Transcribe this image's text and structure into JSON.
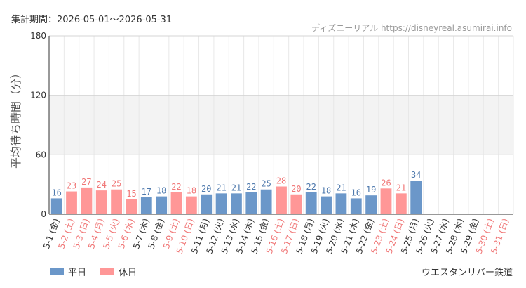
{
  "header": {
    "period": "集計期間：2026-05-01～2026-05-31",
    "credit": "ディズニーリアル https://disneyreal.asumirai.info"
  },
  "legend": {
    "weekday_label": "平日",
    "holiday_label": "休日"
  },
  "footer": {
    "attraction": "ウエスタンリバー鉄道"
  },
  "colors": {
    "weekday": "#6b97c9",
    "holiday": "#ff9797",
    "weekday_text": "#4e79ad",
    "holiday_text": "#f07777",
    "band": "#f3f3f3"
  },
  "chart_data": {
    "type": "bar",
    "ylabel": "平均待ち時間（分）",
    "ylim": [
      0,
      180
    ],
    "yticks": [
      0,
      60,
      120,
      180
    ],
    "grid": true,
    "legend_position": "bottom-left",
    "categories": [
      "5-1 (金)",
      "5-2 (土)",
      "5-3 (日)",
      "5-4 (月)",
      "5-5 (火)",
      "5-6 (水)",
      "5-7 (木)",
      "5-8 (金)",
      "5-9 (土)",
      "5-10 (日)",
      "5-11 (月)",
      "5-12 (火)",
      "5-13 (水)",
      "5-14 (木)",
      "5-15 (金)",
      "5-16 (土)",
      "5-17 (日)",
      "5-18 (月)",
      "5-19 (火)",
      "5-20 (水)",
      "5-21 (木)",
      "5-22 (金)",
      "5-23 (土)",
      "5-24 (日)",
      "5-25 (月)",
      "5-26 (火)",
      "5-27 (水)",
      "5-28 (木)",
      "5-29 (金)",
      "5-30 (土)",
      "5-31 (日)"
    ],
    "values": [
      16,
      23,
      27,
      24,
      25,
      15,
      17,
      18,
      22,
      18,
      20,
      21,
      21,
      22,
      25,
      28,
      20,
      22,
      18,
      21,
      16,
      19,
      26,
      21,
      34,
      null,
      null,
      null,
      null,
      null,
      null
    ],
    "holiday": [
      false,
      true,
      true,
      true,
      true,
      true,
      false,
      false,
      true,
      true,
      false,
      false,
      false,
      false,
      false,
      true,
      true,
      false,
      false,
      false,
      false,
      false,
      true,
      true,
      false,
      false,
      false,
      false,
      false,
      true,
      true
    ],
    "series": [
      {
        "name": "平日"
      },
      {
        "name": "休日"
      }
    ]
  }
}
